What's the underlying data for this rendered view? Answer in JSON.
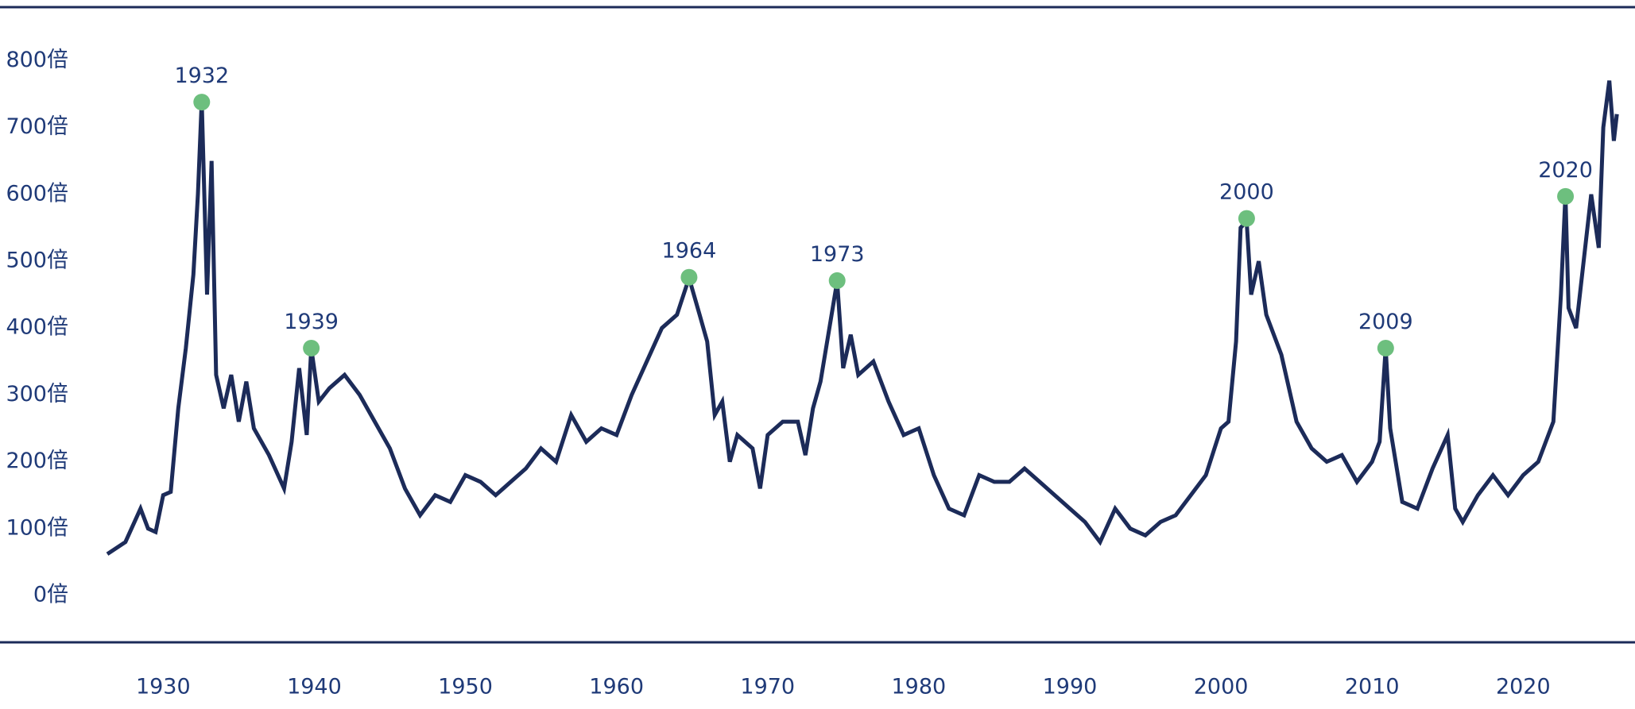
{
  "chart_data": {
    "type": "line",
    "x": [
      1926.3,
      1926.5,
      1927.5,
      1928.5,
      1929,
      1929.5,
      1930,
      1930.5,
      1931,
      1931.5,
      1932,
      1932.3,
      1932.55,
      1932.9,
      1933.2,
      1933.5,
      1934,
      1934.5,
      1935,
      1935.5,
      1936,
      1937,
      1938,
      1938.5,
      1939,
      1939.5,
      1939.8,
      1940.3,
      1941,
      1942,
      1943,
      1944,
      1945,
      1946,
      1947,
      1948,
      1949,
      1950,
      1951,
      1952,
      1953,
      1954,
      1955,
      1956,
      1957,
      1958,
      1959,
      1960,
      1961,
      1962,
      1963,
      1964,
      1964.8,
      1965.5,
      1966,
      1966.5,
      1967,
      1967.5,
      1968,
      1969,
      1969.5,
      1970,
      1971,
      1972,
      1972.5,
      1973,
      1973.5,
      1974.6,
      1975,
      1975.5,
      1976,
      1977,
      1978,
      1979,
      1980,
      1981,
      1982,
      1983,
      1984,
      1985,
      1986,
      1987,
      1988,
      1989,
      1990,
      1991,
      1992,
      1993,
      1994,
      1995,
      1996,
      1997,
      1998,
      1999,
      2000,
      2000.5,
      2001,
      2001.3,
      2001.7,
      2002,
      2002.5,
      2003,
      2004,
      2005,
      2006,
      2007,
      2008,
      2009,
      2010,
      2010.5,
      2010.9,
      2011.2,
      2012,
      2013,
      2014,
      2015,
      2015.5,
      2016,
      2017,
      2018,
      2019,
      2020,
      2021,
      2022,
      2022.5,
      2022.8,
      2023,
      2023.5,
      2024,
      2024.5,
      2025,
      2025.3,
      2025.7,
      2026,
      2026.2
    ],
    "values": [
      62,
      65,
      80,
      130,
      100,
      95,
      150,
      155,
      280,
      370,
      480,
      600,
      740,
      450,
      650,
      330,
      280,
      330,
      260,
      320,
      250,
      210,
      160,
      230,
      340,
      240,
      370,
      290,
      310,
      330,
      300,
      260,
      220,
      160,
      120,
      150,
      140,
      180,
      170,
      150,
      170,
      190,
      220,
      200,
      270,
      230,
      250,
      240,
      300,
      350,
      400,
      420,
      475,
      420,
      380,
      270,
      290,
      200,
      240,
      220,
      160,
      240,
      260,
      260,
      210,
      280,
      320,
      470,
      340,
      390,
      330,
      350,
      290,
      240,
      250,
      180,
      130,
      120,
      180,
      170,
      170,
      190,
      170,
      150,
      130,
      110,
      80,
      130,
      100,
      90,
      110,
      120,
      150,
      180,
      250,
      260,
      380,
      550,
      560,
      450,
      500,
      420,
      360,
      260,
      220,
      200,
      210,
      170,
      200,
      230,
      370,
      250,
      140,
      130,
      190,
      240,
      130,
      110,
      150,
      180,
      150,
      180,
      200,
      260,
      450,
      600,
      430,
      400,
      500,
      600,
      520,
      700,
      770,
      680,
      720
    ],
    "color": "#1c2b59",
    "xlim": [
      1919.2,
      2027.4
    ],
    "ylim": [
      -70,
      880
    ],
    "xticks": [
      1930,
      1940,
      1950,
      1960,
      1970,
      1980,
      1990,
      2000,
      2010,
      2020
    ],
    "yticks": [
      {
        "value": 0,
        "label": "0倍"
      },
      {
        "value": 100,
        "label": "100倍"
      },
      {
        "value": 200,
        "label": "200倍"
      },
      {
        "value": 300,
        "label": "300倍"
      },
      {
        "value": 400,
        "label": "400倍"
      },
      {
        "value": 500,
        "label": "500倍"
      },
      {
        "value": 600,
        "label": "600倍"
      },
      {
        "value": 700,
        "label": "700倍"
      },
      {
        "value": 800,
        "label": "800倍"
      }
    ],
    "grid": false,
    "marker_color": "#6dbf7e",
    "annotations": [
      {
        "x": 1932.55,
        "y": 738,
        "label": "1932"
      },
      {
        "x": 1939.8,
        "y": 370,
        "label": "1939"
      },
      {
        "x": 1964.8,
        "y": 476,
        "label": "1964"
      },
      {
        "x": 1974.6,
        "y": 471,
        "label": "1973"
      },
      {
        "x": 2001.7,
        "y": 564,
        "label": "2000"
      },
      {
        "x": 2010.9,
        "y": 370,
        "label": "2009"
      },
      {
        "x": 2022.8,
        "y": 597,
        "label": "2020"
      }
    ]
  }
}
